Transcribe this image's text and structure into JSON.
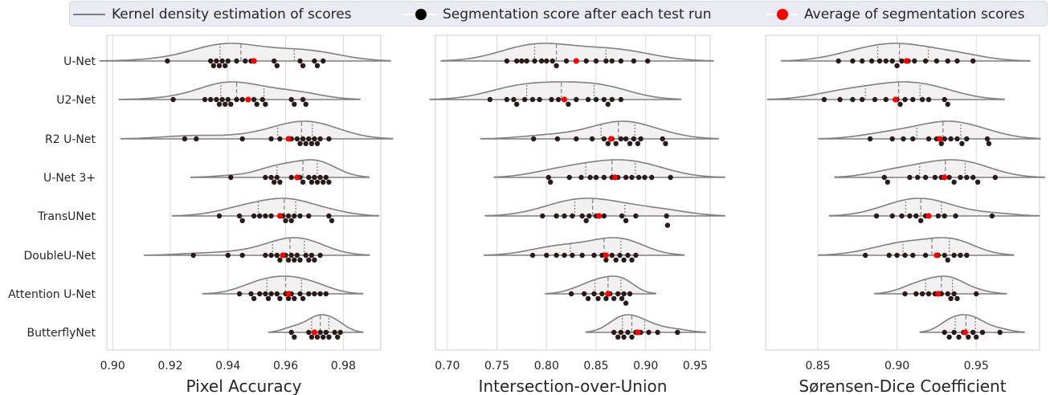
{
  "legend": {
    "kde_label": "Kernel density estimation of scores",
    "run_label": "Segmentation score after each test run",
    "avg_label": "Average of segmentation scores",
    "kde_color": "#808080",
    "run_color": "#2b1a1a",
    "avg_color": "#ff0000"
  },
  "chart_data": [
    {
      "type": "violin+swarm",
      "xlabel": "Pixel Accuracy",
      "xlim": [
        0.898,
        0.993
      ],
      "xticks": [
        0.9,
        0.92,
        0.94,
        0.96,
        0.98
      ],
      "xtick_labels": [
        "0.90",
        "0.92",
        "0.94",
        "0.96",
        "0.98"
      ],
      "grid": true,
      "categories": [
        "U-Net",
        "U2-Net",
        "R2 U-Net",
        "U-Net 3+",
        "TransUNet",
        "DoubleU-Net",
        "Attention U-Net",
        "ButterflyNet"
      ],
      "series": [
        {
          "runs": [
            0.919,
            0.934,
            0.935,
            0.936,
            0.937,
            0.938,
            0.939,
            0.94,
            0.943,
            0.946,
            0.948,
            0.956,
            0.957,
            0.965,
            0.966,
            0.97,
            0.971,
            0.973
          ],
          "mean": 0.949
        },
        {
          "runs": [
            0.921,
            0.932,
            0.934,
            0.936,
            0.937,
            0.938,
            0.939,
            0.94,
            0.941,
            0.943,
            0.945,
            0.949,
            0.95,
            0.952,
            0.953,
            0.962,
            0.963,
            0.966,
            0.967
          ],
          "mean": 0.947
        },
        {
          "runs": [
            0.925,
            0.929,
            0.945,
            0.955,
            0.958,
            0.962,
            0.964,
            0.965,
            0.966,
            0.967,
            0.968,
            0.969,
            0.97,
            0.971,
            0.972,
            0.975
          ],
          "mean": 0.961
        },
        {
          "runs": [
            0.941,
            0.953,
            0.955,
            0.956,
            0.957,
            0.958,
            0.962,
            0.965,
            0.966,
            0.968,
            0.969,
            0.97,
            0.971,
            0.972,
            0.973,
            0.974,
            0.975
          ],
          "mean": 0.964
        },
        {
          "runs": [
            0.937,
            0.944,
            0.945,
            0.949,
            0.951,
            0.953,
            0.955,
            0.959,
            0.96,
            0.961,
            0.962,
            0.963,
            0.965,
            0.968,
            0.975,
            0.976
          ],
          "mean": 0.958
        },
        {
          "runs": [
            0.928,
            0.94,
            0.945,
            0.953,
            0.955,
            0.957,
            0.958,
            0.96,
            0.961,
            0.962,
            0.963,
            0.964,
            0.965,
            0.967,
            0.968,
            0.969,
            0.97,
            0.972
          ],
          "mean": 0.959
        },
        {
          "runs": [
            0.944,
            0.948,
            0.949,
            0.951,
            0.953,
            0.954,
            0.955,
            0.957,
            0.958,
            0.96,
            0.961,
            0.962,
            0.963,
            0.965,
            0.966,
            0.968,
            0.97,
            0.972,
            0.974
          ],
          "mean": 0.961
        },
        {
          "runs": [
            0.962,
            0.963,
            0.968,
            0.969,
            0.97,
            0.971,
            0.972,
            0.973,
            0.974,
            0.975,
            0.977,
            0.978,
            0.979
          ],
          "mean": 0.97
        }
      ]
    },
    {
      "type": "violin+swarm",
      "xlabel": "Intersection-over-Union",
      "xlim": [
        0.688,
        0.965
      ],
      "xticks": [
        0.7,
        0.75,
        0.8,
        0.85,
        0.9,
        0.95
      ],
      "xtick_labels": [
        "0.70",
        "0.75",
        "0.80",
        "0.85",
        "0.90",
        "0.95"
      ],
      "grid": true,
      "categories": [
        "U-Net",
        "U2-Net",
        "R2 U-Net",
        "U-Net 3+",
        "TransUNet",
        "DoubleU-Net",
        "Attention U-Net",
        "ButterflyNet"
      ],
      "series": [
        {
          "runs": [
            0.76,
            0.77,
            0.775,
            0.78,
            0.788,
            0.795,
            0.8,
            0.806,
            0.81,
            0.82,
            0.84,
            0.85,
            0.86,
            0.866,
            0.875,
            0.888,
            0.902
          ],
          "mean": 0.83
        },
        {
          "runs": [
            0.743,
            0.76,
            0.767,
            0.77,
            0.778,
            0.786,
            0.793,
            0.805,
            0.812,
            0.818,
            0.822,
            0.83,
            0.842,
            0.85,
            0.858,
            0.862,
            0.866,
            0.875
          ],
          "mean": 0.818
        },
        {
          "runs": [
            0.787,
            0.811,
            0.83,
            0.846,
            0.858,
            0.862,
            0.866,
            0.87,
            0.875,
            0.88,
            0.884,
            0.888,
            0.892,
            0.895,
            0.917,
            0.92
          ],
          "mean": 0.865
        },
        {
          "runs": [
            0.802,
            0.804,
            0.823,
            0.835,
            0.844,
            0.85,
            0.858,
            0.866,
            0.872,
            0.88,
            0.886,
            0.893,
            0.899,
            0.906,
            0.925
          ],
          "mean": 0.869
        },
        {
          "runs": [
            0.796,
            0.81,
            0.818,
            0.826,
            0.836,
            0.84,
            0.843,
            0.85,
            0.858,
            0.876,
            0.88,
            0.89,
            0.921,
            0.922
          ],
          "mean": 0.853
        },
        {
          "runs": [
            0.786,
            0.8,
            0.81,
            0.818,
            0.826,
            0.836,
            0.848,
            0.856,
            0.86,
            0.866,
            0.87,
            0.874,
            0.878,
            0.882,
            0.886,
            0.89
          ],
          "mean": 0.86
        },
        {
          "runs": [
            0.825,
            0.838,
            0.842,
            0.848,
            0.852,
            0.856,
            0.86,
            0.864,
            0.868,
            0.872,
            0.876,
            0.878,
            0.88,
            0.884
          ],
          "mean": 0.862
        },
        {
          "runs": [
            0.868,
            0.872,
            0.875,
            0.878,
            0.882,
            0.886,
            0.89,
            0.895,
            0.903,
            0.912,
            0.932
          ],
          "mean": 0.892
        }
      ]
    },
    {
      "type": "violin+swarm",
      "xlabel": "Sørensen-Dice Coefficient",
      "xlim": [
        0.817,
        0.99
      ],
      "xticks": [
        0.85,
        0.9,
        0.95
      ],
      "xtick_labels": [
        "0.85",
        "0.90",
        "0.95"
      ],
      "grid": true,
      "categories": [
        "U-Net",
        "U2-Net",
        "R2 U-Net",
        "U-Net 3+",
        "TransUNet",
        "DoubleU-Net",
        "Attention U-Net",
        "ButterflyNet"
      ],
      "series": [
        {
          "runs": [
            0.863,
            0.872,
            0.878,
            0.884,
            0.889,
            0.893,
            0.897,
            0.9,
            0.903,
            0.907,
            0.911,
            0.918,
            0.925,
            0.932,
            0.938,
            0.948
          ],
          "mean": 0.906
        },
        {
          "runs": [
            0.854,
            0.864,
            0.872,
            0.878,
            0.886,
            0.893,
            0.9,
            0.902,
            0.905,
            0.91,
            0.916,
            0.92,
            0.93,
            0.932
          ],
          "mean": 0.899
        },
        {
          "runs": [
            0.883,
            0.897,
            0.904,
            0.91,
            0.92,
            0.925,
            0.928,
            0.93,
            0.934,
            0.938,
            0.941,
            0.944,
            0.957,
            0.958
          ],
          "mean": 0.927
        },
        {
          "runs": [
            0.892,
            0.894,
            0.908,
            0.913,
            0.918,
            0.924,
            0.928,
            0.933,
            0.936,
            0.94,
            0.944,
            0.948,
            0.951,
            0.962
          ],
          "mean": 0.93
        },
        {
          "runs": [
            0.887,
            0.897,
            0.903,
            0.908,
            0.912,
            0.915,
            0.918,
            0.926,
            0.93,
            0.937,
            0.96
          ],
          "mean": 0.92
        },
        {
          "runs": [
            0.88,
            0.895,
            0.9,
            0.905,
            0.91,
            0.918,
            0.926,
            0.93,
            0.932,
            0.936,
            0.94,
            0.944
          ],
          "mean": 0.925
        },
        {
          "runs": [
            0.905,
            0.912,
            0.916,
            0.92,
            0.924,
            0.928,
            0.932,
            0.934,
            0.936,
            0.938,
            0.95
          ],
          "mean": 0.926
        },
        {
          "runs": [
            0.93,
            0.933,
            0.936,
            0.939,
            0.942,
            0.945,
            0.948,
            0.95,
            0.954,
            0.965
          ],
          "mean": 0.943
        }
      ]
    }
  ]
}
